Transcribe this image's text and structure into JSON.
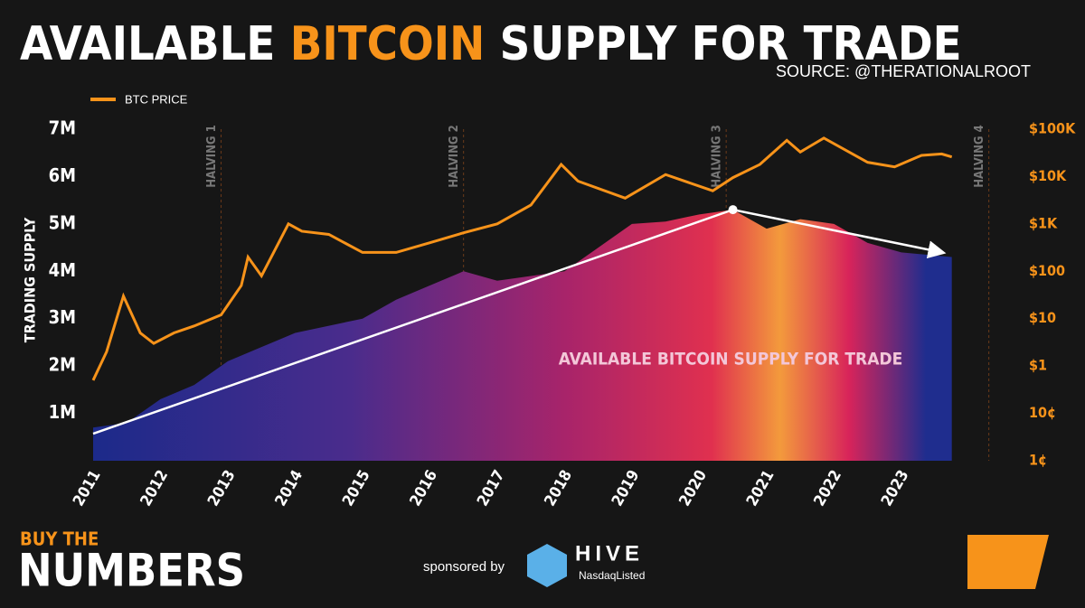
{
  "chart_data": {
    "type": "area-line",
    "title": [
      "AVAILABLE",
      "BITCOIN",
      "SUPPLY FOR TRADE"
    ],
    "source": "SOURCE: @THERATIONALROOT",
    "y_label": "TRADING SUPPLY",
    "categories": [
      "2011",
      "2012",
      "2013",
      "2014",
      "2015",
      "2016",
      "2017",
      "2018",
      "2019",
      "2020",
      "2021",
      "2022",
      "2023"
    ],
    "xlim": [
      2011,
      2024.6
    ],
    "ylim": [
      0,
      7000000
    ],
    "yticks": [
      {
        "value": 1000000,
        "label": "1M"
      },
      {
        "value": 2000000,
        "label": "2M"
      },
      {
        "value": 3000000,
        "label": "3M"
      },
      {
        "value": 4000000,
        "label": "4M"
      },
      {
        "value": 5000000,
        "label": "5M"
      },
      {
        "value": 6000000,
        "label": "6M"
      },
      {
        "value": 7000000,
        "label": "7M"
      }
    ],
    "y2lim": [
      0.01,
      100000
    ],
    "y2scale": "log",
    "y2ticks": [
      {
        "value": 0.01,
        "label": "1¢"
      },
      {
        "value": 0.1,
        "label": "10¢"
      },
      {
        "value": 1,
        "label": "$1"
      },
      {
        "value": 10,
        "label": "$10"
      },
      {
        "value": 100,
        "label": "$100"
      },
      {
        "value": 1000,
        "label": "$1K"
      },
      {
        "value": 10000,
        "label": "$10K"
      },
      {
        "value": 100000,
        "label": "$100K"
      }
    ],
    "series": [
      {
        "name": "AVAILABLE BITCOIN SUPPLY FOR TRADE",
        "x": [
          2011,
          2011.5,
          2012,
          2012.5,
          2013,
          2013.5,
          2014,
          2014.5,
          2015,
          2015.5,
          2016,
          2016.5,
          2017,
          2017.5,
          2018,
          2018.5,
          2019,
          2019.5,
          2020,
          2020.5,
          2021,
          2021.5,
          2022,
          2022.5,
          2023,
          2023.75
        ],
        "values": [
          700000,
          800000,
          1300000,
          1600000,
          2100000,
          2400000,
          2700000,
          2850000,
          3000000,
          3400000,
          3700000,
          4000000,
          3800000,
          3900000,
          4000000,
          4500000,
          5000000,
          5050000,
          5200000,
          5300000,
          4900000,
          5100000,
          5000000,
          4600000,
          4400000,
          4300000
        ]
      },
      {
        "name": "BTC PRICE",
        "color": "#f7931a",
        "axis": "y2",
        "x": [
          2011,
          2011.2,
          2011.45,
          2011.7,
          2011.9,
          2012.2,
          2012.5,
          2012.9,
          2013.2,
          2013.3,
          2013.5,
          2013.9,
          2014.1,
          2014.5,
          2015,
          2015.5,
          2016,
          2016.5,
          2017,
          2017.5,
          2017.95,
          2018.2,
          2018.9,
          2019.5,
          2020.2,
          2020.5,
          2020.9,
          2021.3,
          2021.5,
          2021.85,
          2022.5,
          2022.9,
          2023.3,
          2023.6,
          2023.75
        ],
        "values": [
          0.5,
          2,
          30,
          5,
          3,
          5,
          7,
          12,
          50,
          200,
          80,
          1000,
          700,
          600,
          250,
          250,
          400,
          650,
          1000,
          2500,
          18000,
          8000,
          3500,
          11000,
          5000,
          9500,
          18000,
          58000,
          33000,
          65000,
          20000,
          16000,
          28000,
          30000,
          26000
        ]
      }
    ],
    "trend_line": {
      "x": [
        2011,
        2020.5,
        2023.6
      ],
      "values": [
        570000,
        5300000,
        4400000
      ]
    },
    "halvings": {
      "x": [
        2012.9,
        2016.5,
        2020.4,
        2024.3
      ],
      "labels": [
        "HALVING 1",
        "HALVING 2",
        "HALVING 3",
        "HALVING 4"
      ]
    }
  },
  "footer": {
    "brand_top": "BUY THE",
    "brand": "NUMBERS",
    "sponsor_text": "sponsored by",
    "sponsor": "HIVE",
    "sponsor_sub": "NasdaqListed"
  }
}
